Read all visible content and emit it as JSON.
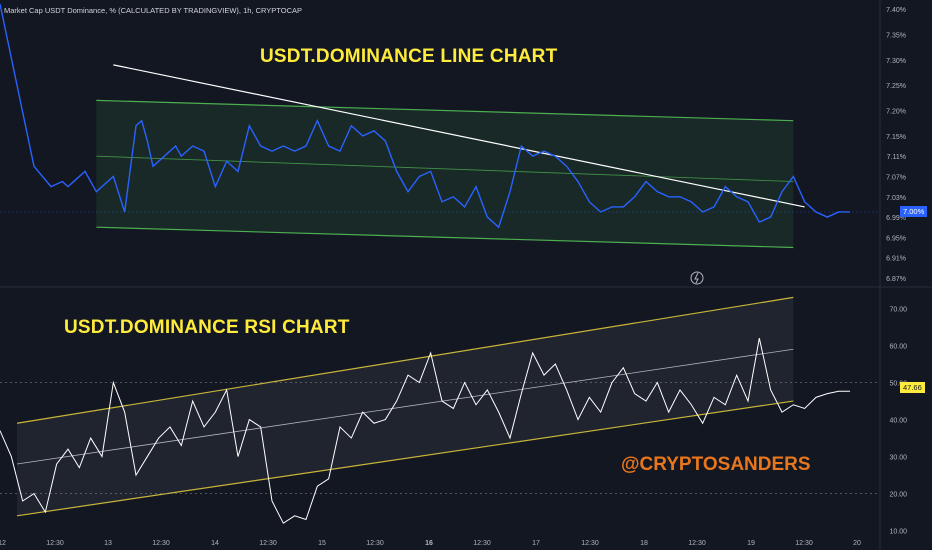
{
  "header": {
    "symbol_info": "Market Cap USDT Dominance, % (CALCULATED BY TRADINGVIEW), 1h, CRYPTOCAP"
  },
  "annotations": {
    "line_title": "USDT.DOMINANCE  LINE CHART",
    "rsi_title": "USDT.DOMINANCE  RSI CHART",
    "handle": "@CRYPTOSANDERS"
  },
  "colors": {
    "background": "#131722",
    "price_line": "#2962ff",
    "channel_green": "#4caf50",
    "channel_fill": "rgba(76,175,80,0.12)",
    "trendline": "#ffffff",
    "rsi_line": "#ffffff",
    "rsi_channel": "#c9b53a",
    "title_yellow": "#ffeb3b",
    "handle_orange": "#e8761c"
  },
  "last_values": {
    "price": "7.00%",
    "rsi": "47.66"
  },
  "chart_data": [
    {
      "type": "line",
      "name": "price",
      "y_axis_ticks": [
        "7.40%",
        "7.35%",
        "7.30%",
        "7.25%",
        "7.20%",
        "7.15%",
        "7.11%",
        "7.07%",
        "7.03%",
        "6.99%",
        "6.95%",
        "6.91%",
        "6.87%"
      ],
      "ylim": [
        6.86,
        7.41
      ],
      "x": [
        0,
        0.3,
        0.6,
        0.9,
        1.1,
        1.2,
        1.3,
        1.5,
        1.7,
        2.0,
        2.2,
        2.4,
        2.5,
        2.6,
        2.7,
        2.9,
        3.1,
        3.2,
        3.4,
        3.6,
        3.8,
        4.0,
        4.2,
        4.4,
        4.6,
        4.8,
        5.0,
        5.2,
        5.4,
        5.6,
        5.8,
        6.0,
        6.2,
        6.4,
        6.6,
        6.8,
        7.0,
        7.2,
        7.4,
        7.6,
        7.8,
        8.0,
        8.2,
        8.4,
        8.6,
        8.8,
        9.0,
        9.2,
        9.4,
        9.6,
        9.8,
        10.0,
        10.2,
        10.4,
        10.6,
        10.8,
        11.0,
        11.2,
        11.4,
        11.6,
        11.8,
        12.0,
        12.2,
        12.4,
        12.6,
        12.8,
        13.0,
        13.2,
        13.4,
        13.6,
        13.8,
        14.0,
        14.2,
        14.4,
        14.6,
        14.8,
        15.0
      ],
      "y": [
        7.41,
        7.25,
        7.09,
        7.05,
        7.06,
        7.05,
        7.06,
        7.08,
        7.04,
        7.07,
        7.0,
        7.17,
        7.18,
        7.14,
        7.09,
        7.11,
        7.13,
        7.11,
        7.13,
        7.12,
        7.05,
        7.1,
        7.08,
        7.17,
        7.13,
        7.12,
        7.13,
        7.12,
        7.13,
        7.18,
        7.13,
        7.12,
        7.17,
        7.15,
        7.16,
        7.14,
        7.08,
        7.04,
        7.07,
        7.08,
        7.02,
        7.03,
        7.01,
        7.05,
        6.99,
        6.97,
        7.04,
        7.13,
        7.11,
        7.12,
        7.11,
        7.09,
        7.06,
        7.02,
        7.0,
        7.01,
        7.01,
        7.03,
        7.06,
        7.04,
        7.03,
        7.03,
        7.02,
        7.0,
        7.01,
        7.05,
        7.03,
        7.02,
        6.98,
        6.99,
        7.04,
        7.07,
        7.02,
        7.0,
        6.99,
        7.0,
        7.0
      ],
      "channel": {
        "upper": [
          [
            1.7,
            7.22
          ],
          [
            14.0,
            7.18
          ]
        ],
        "mid": [
          [
            1.7,
            7.11
          ],
          [
            14.0,
            7.06
          ]
        ],
        "lower": [
          [
            1.7,
            6.97
          ],
          [
            14.0,
            6.93
          ]
        ]
      },
      "trendline": [
        [
          2.0,
          7.29
        ],
        [
          14.2,
          7.01
        ]
      ]
    },
    {
      "type": "line",
      "name": "rsi",
      "y_axis_ticks": [
        "70.00",
        "60.00",
        "50.00",
        "40.00",
        "30.00",
        "20.00",
        "10.00"
      ],
      "ylim": [
        8.0,
        75.0
      ],
      "x_ticks": [
        "12",
        "12:30",
        "13",
        "12:30",
        "14",
        "12:30",
        "15",
        "12:30",
        "16",
        "12:30",
        "17",
        "12:30",
        "18",
        "12:30",
        "19",
        "12:30",
        "20"
      ],
      "x": [
        0,
        0.2,
        0.4,
        0.6,
        0.8,
        1.0,
        1.2,
        1.4,
        1.6,
        1.8,
        2.0,
        2.2,
        2.4,
        2.6,
        2.8,
        3.0,
        3.2,
        3.4,
        3.6,
        3.8,
        4.0,
        4.2,
        4.4,
        4.6,
        4.8,
        5.0,
        5.2,
        5.4,
        5.6,
        5.8,
        6.0,
        6.2,
        6.4,
        6.6,
        6.8,
        7.0,
        7.2,
        7.4,
        7.6,
        7.8,
        8.0,
        8.2,
        8.4,
        8.6,
        8.8,
        9.0,
        9.2,
        9.4,
        9.6,
        9.8,
        10.0,
        10.2,
        10.4,
        10.6,
        10.8,
        11.0,
        11.2,
        11.4,
        11.6,
        11.8,
        12.0,
        12.2,
        12.4,
        12.6,
        12.8,
        13.0,
        13.2,
        13.4,
        13.6,
        13.8,
        14.0,
        14.2,
        14.4,
        14.6,
        14.8,
        15.0
      ],
      "y": [
        37,
        30,
        18,
        20,
        15,
        28,
        32,
        27,
        35,
        30,
        50,
        42,
        25,
        30,
        35,
        38,
        33,
        45,
        38,
        42,
        48,
        30,
        40,
        38,
        18,
        12,
        14,
        13,
        22,
        24,
        38,
        35,
        42,
        39,
        40,
        45,
        52,
        50,
        58,
        45,
        43,
        50,
        44,
        48,
        42,
        35,
        47,
        58,
        52,
        55,
        48,
        40,
        46,
        42,
        50,
        54,
        47,
        45,
        50,
        42,
        48,
        44,
        39,
        46,
        44,
        52,
        45,
        62,
        48,
        42,
        44,
        43,
        46,
        47,
        47.66,
        47.66
      ],
      "channel": {
        "upper": [
          [
            0.3,
            39
          ],
          [
            14.0,
            73
          ]
        ],
        "mid": [
          [
            0.3,
            28
          ],
          [
            14.0,
            59
          ]
        ],
        "lower": [
          [
            0.3,
            14
          ],
          [
            14.0,
            45
          ]
        ]
      },
      "reference_lines": [
        50,
        20
      ]
    }
  ]
}
